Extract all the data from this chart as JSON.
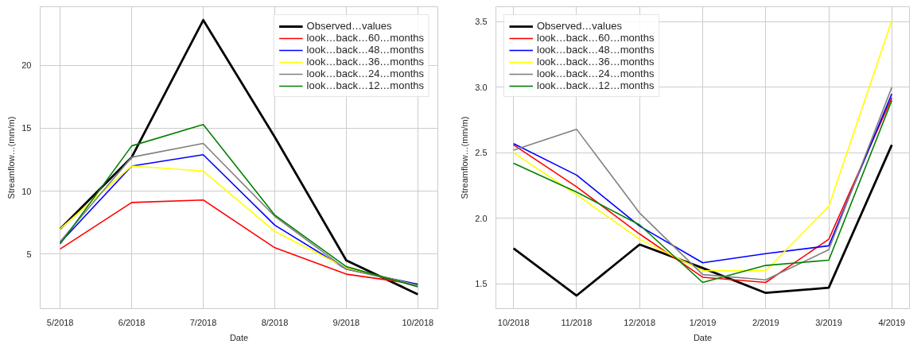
{
  "chart_data": [
    {
      "type": "line",
      "xlabel": "Date",
      "ylabel": "Streamflow…(mm/m)",
      "categories": [
        "5/2018",
        "6/2018",
        "7/2018",
        "8/2018",
        "9/2018",
        "10/2018"
      ],
      "ylim": [
        0.66,
        24.66
      ],
      "yticks": [
        5,
        10,
        15,
        20
      ],
      "grid": true,
      "legend": "top right",
      "series": [
        {
          "name": "Observed…values",
          "color": "#000000",
          "values": [
            7.0,
            12.7,
            23.6,
            14.3,
            4.5,
            1.8
          ]
        },
        {
          "name": "look…back…60…months",
          "color": "#ff0000",
          "values": [
            5.4,
            9.1,
            9.3,
            5.5,
            3.4,
            2.6
          ]
        },
        {
          "name": "look…back…48…months",
          "color": "#0000ff",
          "values": [
            5.9,
            12.0,
            12.9,
            7.3,
            3.8,
            2.6
          ]
        },
        {
          "name": "look…back…36…months",
          "color": "#ffff00",
          "values": [
            7.0,
            12.0,
            11.6,
            6.8,
            3.9,
            2.5
          ]
        },
        {
          "name": "look…back…24…months",
          "color": "#808080",
          "values": [
            6.0,
            12.7,
            13.8,
            8.0,
            3.8,
            2.5
          ]
        },
        {
          "name": "look…back…12…months",
          "color": "#008000",
          "values": [
            5.8,
            13.6,
            15.3,
            8.1,
            4.0,
            2.4
          ]
        }
      ]
    },
    {
      "type": "line",
      "xlabel": "Date",
      "ylabel": "Streamflow…(mm/m)",
      "categories": [
        "10/2018",
        "11/2018",
        "12/2018",
        "1/2019",
        "2/2019",
        "3/2019",
        "4/2019"
      ],
      "ylim": [
        1.31,
        3.615
      ],
      "yticks": [
        {
          "value": 1.5,
          "label": "1.5"
        },
        {
          "value": 2,
          "label": "2.0"
        },
        {
          "value": 2.5,
          "label": "2.5"
        },
        {
          "value": 3,
          "label": "3.0"
        },
        {
          "value": 3.5,
          "label": "3.5"
        }
      ],
      "grid": true,
      "legend": "top left",
      "series": [
        {
          "name": "Observed…values",
          "color": "#000000",
          "values": [
            1.77,
            1.41,
            1.8,
            1.62,
            1.43,
            1.47,
            2.56
          ]
        },
        {
          "name": "look…back…60…months",
          "color": "#ff0000",
          "values": [
            2.56,
            2.24,
            1.88,
            1.55,
            1.51,
            1.84,
            2.92
          ]
        },
        {
          "name": "look…back…48…months",
          "color": "#0000ff",
          "values": [
            2.57,
            2.33,
            1.94,
            1.66,
            1.73,
            1.79,
            2.95
          ]
        },
        {
          "name": "look…back…36…months",
          "color": "#ffff00",
          "values": [
            2.5,
            2.18,
            1.84,
            1.6,
            1.6,
            2.09,
            3.51
          ]
        },
        {
          "name": "look…back…24…months",
          "color": "#808080",
          "values": [
            2.52,
            2.68,
            2.04,
            1.57,
            1.53,
            1.76,
            3.0
          ]
        },
        {
          "name": "look…back…12…months",
          "color": "#008000",
          "values": [
            2.42,
            2.2,
            1.95,
            1.51,
            1.64,
            1.68,
            2.9
          ]
        }
      ]
    }
  ]
}
